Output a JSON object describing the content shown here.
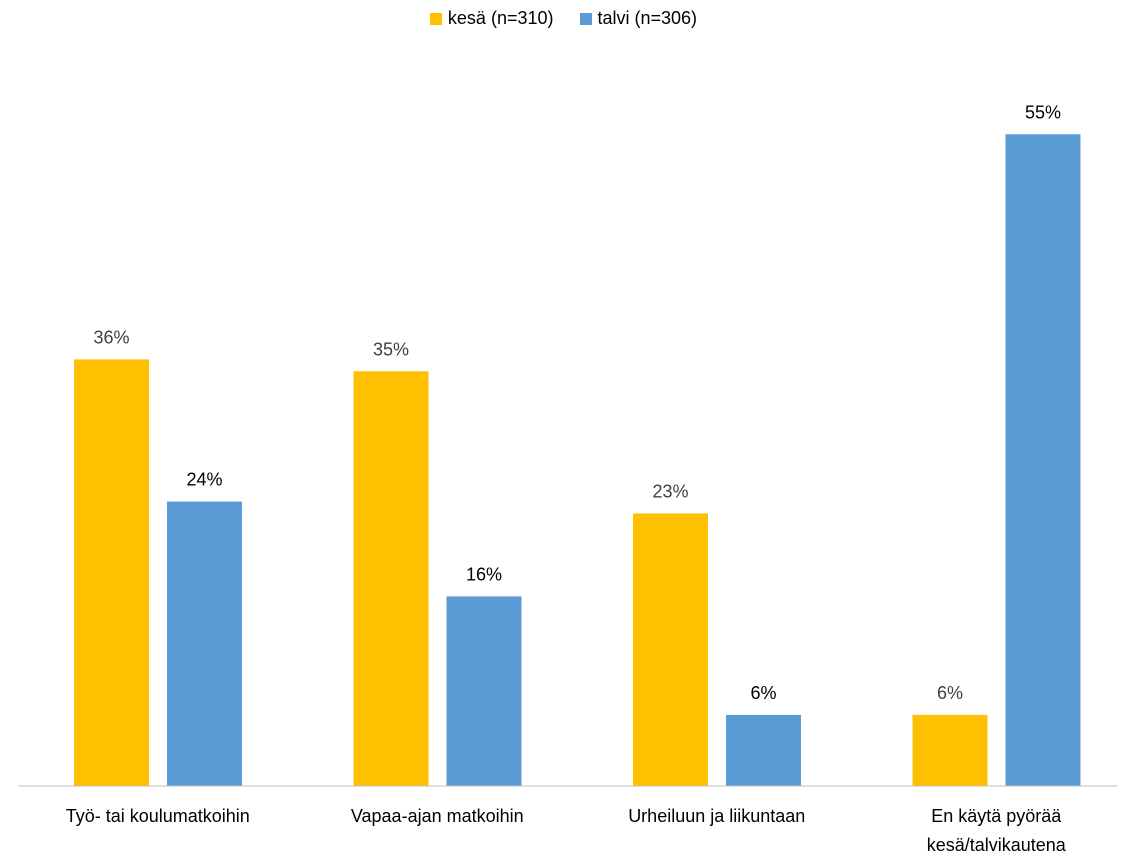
{
  "chart_data": {
    "type": "bar",
    "categories": [
      [
        "Työ- tai koulumatkoihin"
      ],
      [
        "Vapaa-ajan matkoihin"
      ],
      [
        "Urheiluun ja liikuntaan"
      ],
      [
        "En käytä pyörää",
        "kesä/talvikautena"
      ]
    ],
    "series": [
      {
        "name": "kesä (n=310)",
        "color": "#FFC000",
        "values": [
          36,
          35,
          23,
          6
        ],
        "labels": [
          "36%",
          "35%",
          "23%",
          "6%"
        ]
      },
      {
        "name": "talvi (n=306)",
        "color": "#5B9BD5",
        "values": [
          24,
          16,
          6,
          55
        ],
        "labels": [
          "24%",
          "16%",
          "6%",
          "55%"
        ]
      }
    ],
    "ylim": [
      0,
      60
    ],
    "grid": false,
    "legend_position": "top"
  }
}
